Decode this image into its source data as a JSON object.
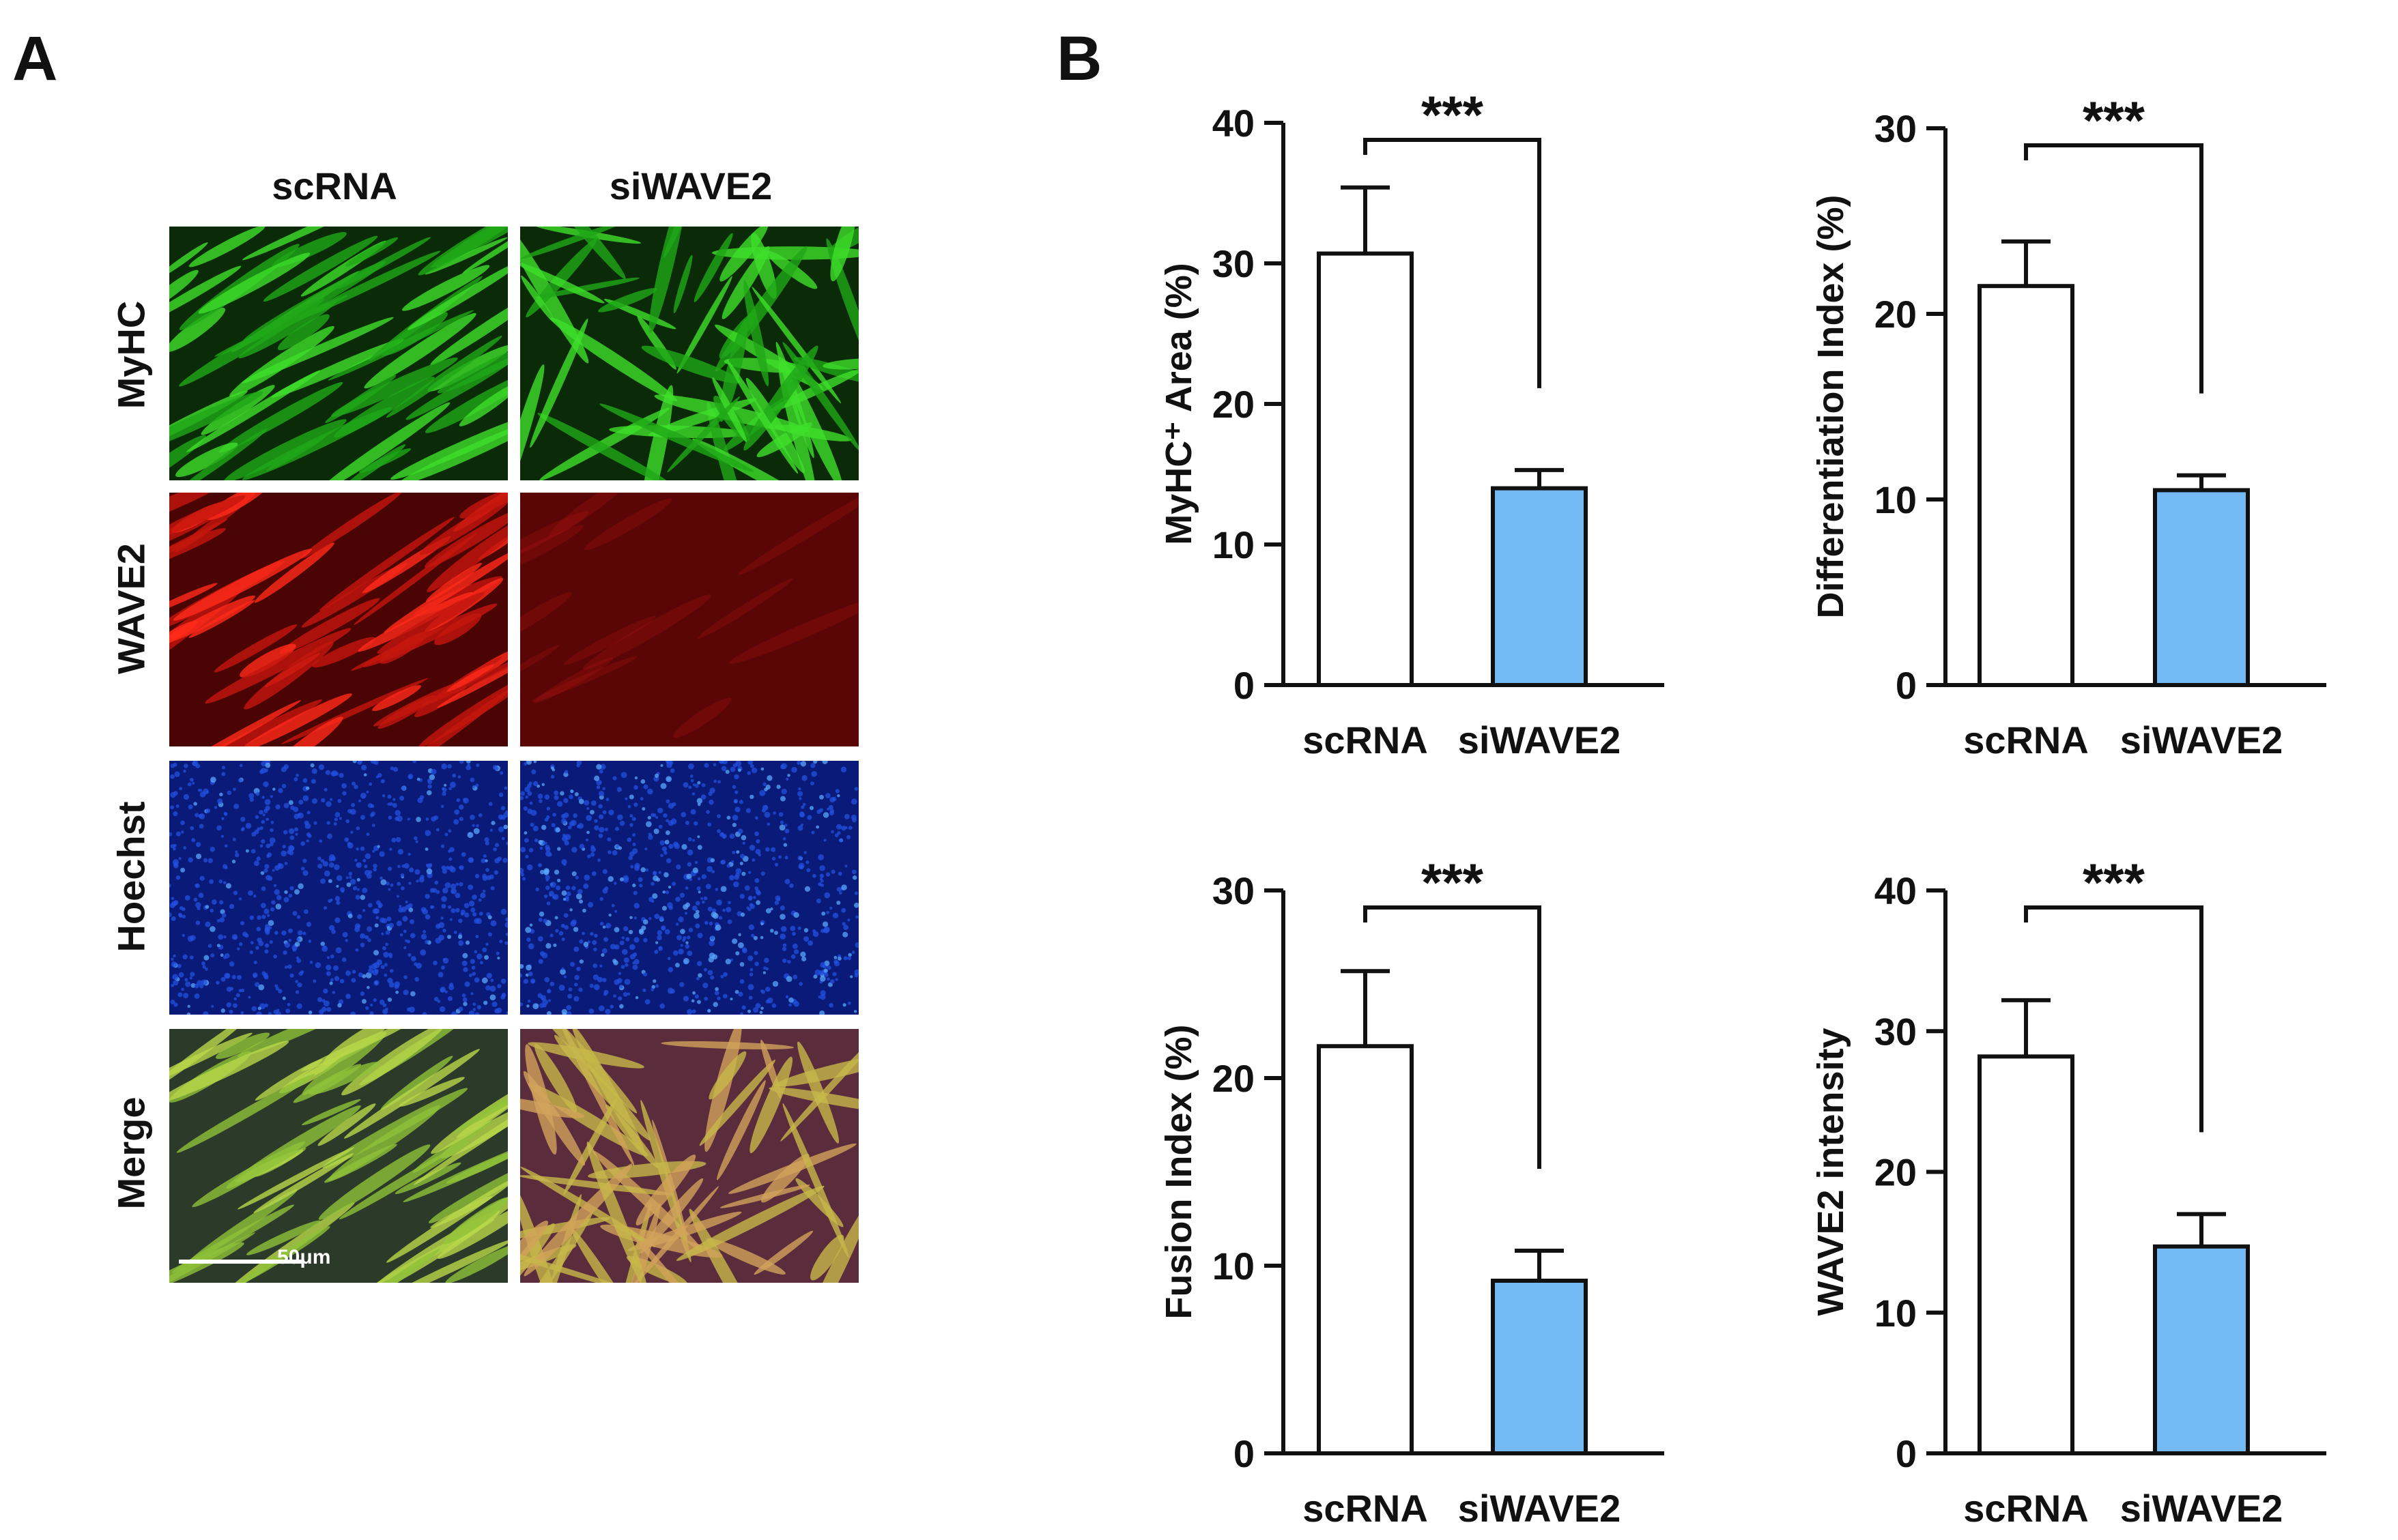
{
  "panel_a": {
    "letter": "A",
    "columns": [
      "scRNA",
      "siWAVE2"
    ],
    "rows": [
      {
        "label": "MyHC",
        "color": "#27c21a"
      },
      {
        "label": "WAVE2",
        "color": "#c8140e"
      },
      {
        "label": "Hoechst",
        "color": "#1b3fc8"
      },
      {
        "label": "Merge",
        "color": "#9aa32a"
      }
    ],
    "scale_bar_label": "50μm"
  },
  "panel_b": {
    "letter": "B"
  },
  "chart_data": [
    {
      "type": "bar",
      "categories": [
        "scRNA",
        "siWAVE2"
      ],
      "values": [
        30.7,
        14.0
      ],
      "errors": [
        4.7,
        1.3
      ],
      "ylabel": "MyHC⁺ Area (%)",
      "ylim": [
        0,
        40
      ],
      "yticks": [
        0,
        10,
        20,
        30,
        40
      ],
      "significance": "***",
      "bar_colors": [
        "#ffffff",
        "#73baf5"
      ]
    },
    {
      "type": "bar",
      "categories": [
        "scRNA",
        "siWAVE2"
      ],
      "values": [
        21.5,
        10.5
      ],
      "errors": [
        2.4,
        0.8
      ],
      "ylabel": "Differentiation Index (%)",
      "ylim": [
        0,
        30
      ],
      "yticks": [
        0,
        10,
        20,
        30
      ],
      "significance": "***",
      "bar_colors": [
        "#ffffff",
        "#73baf5"
      ]
    },
    {
      "type": "bar",
      "categories": [
        "scRNA",
        "siWAVE2"
      ],
      "values": [
        21.7,
        9.2
      ],
      "errors": [
        4.0,
        1.6
      ],
      "ylabel": "Fusion Index (%)",
      "ylim": [
        0,
        30
      ],
      "yticks": [
        0,
        10,
        20,
        30
      ],
      "significance": "***",
      "bar_colors": [
        "#ffffff",
        "#73baf5"
      ]
    },
    {
      "type": "bar",
      "categories": [
        "scRNA",
        "siWAVE2"
      ],
      "values": [
        28.2,
        14.7
      ],
      "errors": [
        4.0,
        2.3
      ],
      "ylabel": "WAVE2 intensity",
      "ylim": [
        0,
        40
      ],
      "yticks": [
        0,
        10,
        20,
        30,
        40
      ],
      "significance": "***",
      "bar_colors": [
        "#ffffff",
        "#73baf5"
      ]
    }
  ]
}
